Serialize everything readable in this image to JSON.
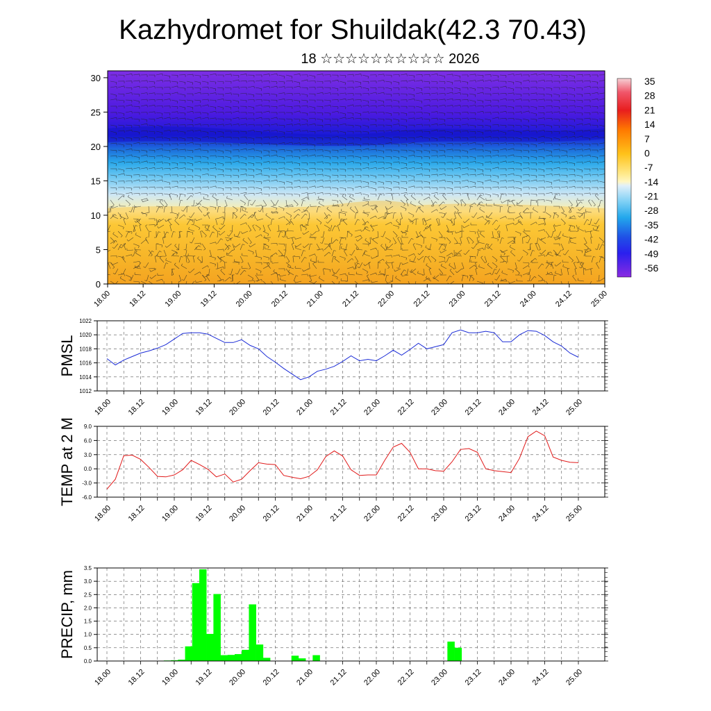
{
  "title": "Kazhydromet for Shuildak(42.3 70.43)",
  "subtitle": "18 ☆☆☆☆☆☆☆☆☆☆ 2026",
  "time_labels": [
    "18.00",
    "18.12",
    "19.00",
    "19.12",
    "20.00",
    "20.12",
    "21.00",
    "21.12",
    "22.00",
    "22.12",
    "23.00",
    "23.12",
    "24.00",
    "24.12",
    "25.00"
  ],
  "colorbar": {
    "labels": [
      "35",
      "28",
      "21",
      "14",
      "7",
      "0",
      "-7",
      "-14",
      "-21",
      "-28",
      "-35",
      "-42",
      "-49",
      "-56"
    ],
    "colors": [
      "#f4c2c8",
      "#e81e1e",
      "#ff6a00",
      "#ff9a00",
      "#ffc21a",
      "#ffe070",
      "#fff4b0",
      "#d4eafa",
      "#7fd0f5",
      "#33b4ee",
      "#1f7fe0",
      "#2d3df0",
      "#4a18e6",
      "#8a2be2"
    ]
  },
  "chart_data": [
    {
      "type": "heatmap",
      "name": "temperature-wind cross-section",
      "ylabel": "",
      "ylim": [
        0,
        31
      ],
      "yticks": [
        "0",
        "5",
        "10",
        "15",
        "20",
        "25",
        "30"
      ],
      "xlabels_ref": "time_labels",
      "wind_barbs": true
    },
    {
      "type": "line",
      "ylabel": "PMSL",
      "ylim": [
        1012,
        1022
      ],
      "yticks": [
        "1012",
        "1014",
        "1016",
        "1018",
        "1020",
        "1022"
      ],
      "color": "#1a2bd6",
      "values": [
        1016.6,
        1015.7,
        1016.4,
        1016.9,
        1017.4,
        1017.7,
        1018.1,
        1018.6,
        1019.4,
        1020.2,
        1020.3,
        1020.3,
        1020.1,
        1019.5,
        1018.9,
        1018.9,
        1019.3,
        1018.5,
        1018.0,
        1016.9,
        1016.1,
        1015.2,
        1014.4,
        1013.6,
        1014.0,
        1014.8,
        1015.1,
        1015.5,
        1016.2,
        1017.0,
        1016.3,
        1016.5,
        1016.3,
        1017.0,
        1017.8,
        1017.1,
        1017.9,
        1018.8,
        1018.0,
        1018.3,
        1018.6,
        1020.3,
        1020.7,
        1020.3,
        1020.3,
        1020.5,
        1020.3,
        1019.0,
        1019.0,
        1020.0,
        1020.6,
        1020.5,
        1019.9,
        1019.0,
        1018.4,
        1017.4,
        1016.8
      ]
    },
    {
      "type": "line",
      "ylabel": "TEMP at 2 M",
      "ylim": [
        -6,
        9
      ],
      "yticks": [
        "-6.0",
        "-3.0",
        "0.0",
        "3.0",
        "6.0",
        "9.0"
      ],
      "color": "#e01818",
      "values": [
        -4.3,
        -2.2,
        2.8,
        2.9,
        2.0,
        0.3,
        -1.6,
        -1.7,
        -1.3,
        -0.2,
        1.8,
        0.9,
        -0.1,
        -1.7,
        -1.1,
        -2.8,
        -2.2,
        -0.4,
        1.3,
        1.0,
        0.9,
        -1.4,
        -1.8,
        -2.1,
        -1.6,
        -0.2,
        2.6,
        3.8,
        2.7,
        -0.2,
        -1.4,
        -1.3,
        -1.3,
        1.8,
        4.6,
        5.4,
        3.5,
        0.0,
        0.0,
        -0.4,
        -0.5,
        1.5,
        4.1,
        4.3,
        3.5,
        0.0,
        -0.4,
        -0.6,
        -0.8,
        2.2,
        6.8,
        8.0,
        7.0,
        2.5,
        1.8,
        1.4,
        1.3
      ]
    },
    {
      "type": "bar",
      "ylabel": "PRECIP, mm",
      "ylim": [
        0,
        3.5
      ],
      "yticks": [
        "0.0",
        "0.5",
        "1.0",
        "1.5",
        "2.0",
        "2.5",
        "3.0",
        "3.5"
      ],
      "color": "#00ff00",
      "values": [
        0,
        0,
        0,
        0,
        0,
        0,
        0,
        0,
        0,
        0.02,
        0.03,
        0.05,
        0.55,
        2.93,
        3.45,
        1.02,
        2.52,
        0.22,
        0.23,
        0.26,
        0.42,
        2.13,
        0.62,
        0.12,
        0,
        0,
        0,
        0.2,
        0.1,
        0,
        0.22,
        0,
        0,
        0,
        0,
        0,
        0,
        0,
        0,
        0,
        0,
        0,
        0,
        0,
        0,
        0,
        0,
        0,
        0,
        0.73,
        0.5,
        0,
        0,
        0,
        0,
        0,
        0,
        0,
        0,
        0,
        0,
        0,
        0,
        0,
        0,
        0,
        0,
        0,
        0,
        0,
        0
      ]
    }
  ]
}
